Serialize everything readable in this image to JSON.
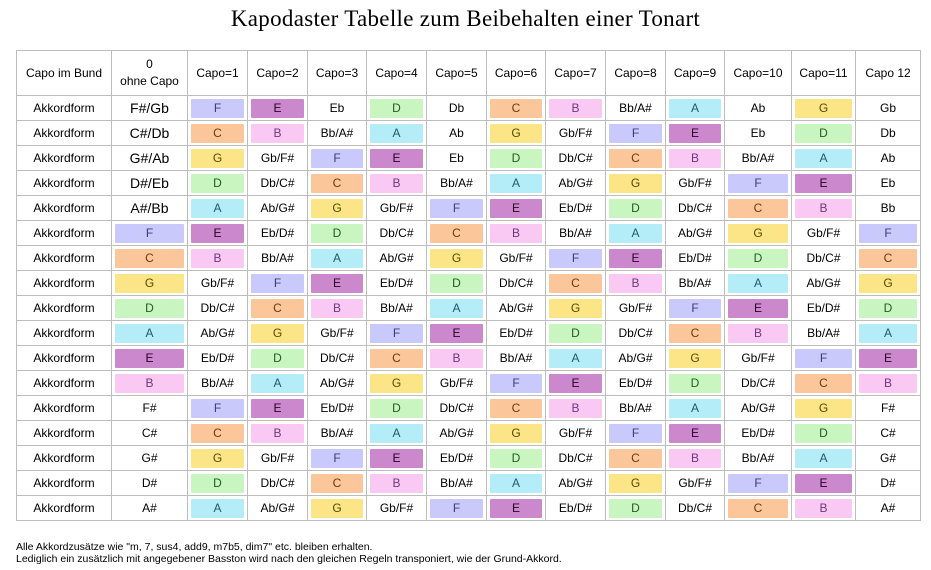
{
  "title": "Kapodaster Tabelle zum Beibehalten einer Tonart",
  "header": [
    "Capo im Bund",
    "0\nohne Capo",
    "Capo=1",
    "Capo=2",
    "Capo=3",
    "Capo=4",
    "Capo=5",
    "Capo=6",
    "Capo=7",
    "Capo=8",
    "Capo=9",
    "Capo=10",
    "Capo=11",
    "Capo 12"
  ],
  "colors": {
    "F": "#c9c9fb",
    "E": "#cc88cc",
    "C": "#fbc79a",
    "B": "#fac9f3",
    "G": "#fbe587",
    "D": "#c9f6c0",
    "A": "#b4ecf8"
  },
  "rows": [
    {
      "label": "Akkordform",
      "cells": [
        "F#/Gb",
        "F",
        "E",
        "Eb",
        "D",
        "Db",
        "C",
        "B",
        "Bb/A#",
        "A",
        "Ab",
        "G",
        "Gb"
      ]
    },
    {
      "label": "Akkordform",
      "cells": [
        "C#/Db",
        "C",
        "B",
        "Bb/A#",
        "A",
        "Ab",
        "G",
        "Gb/F#",
        "F",
        "E",
        "Eb",
        "D",
        "Db"
      ]
    },
    {
      "label": "Akkordform",
      "cells": [
        "G#/Ab",
        "G",
        "Gb/F#",
        "F",
        "E",
        "Eb",
        "D",
        "Db/C#",
        "C",
        "B",
        "Bb/A#",
        "A",
        "Ab"
      ]
    },
    {
      "label": "Akkordform",
      "cells": [
        "D#/Eb",
        "D",
        "Db/C#",
        "C",
        "B",
        "Bb/A#",
        "A",
        "Ab/G#",
        "G",
        "Gb/F#",
        "F",
        "E",
        "Eb"
      ]
    },
    {
      "label": "Akkordform",
      "cells": [
        "A#/Bb",
        "A",
        "Ab/G#",
        "G",
        "Gb/F#",
        "F",
        "E",
        "Eb/D#",
        "D",
        "Db/C#",
        "C",
        "B",
        "Bb"
      ]
    },
    {
      "label": "Akkordform",
      "cells": [
        "F",
        "E",
        "Eb/D#",
        "D",
        "Db/C#",
        "C",
        "B",
        "Bb/A#",
        "A",
        "Ab/G#",
        "G",
        "Gb/F#",
        "F"
      ]
    },
    {
      "label": "Akkordform",
      "cells": [
        "C",
        "B",
        "Bb/A#",
        "A",
        "Ab/G#",
        "G",
        "Gb/F#",
        "F",
        "E",
        "Eb/D#",
        "D",
        "Db/C#",
        "C"
      ]
    },
    {
      "label": "Akkordform",
      "cells": [
        "G",
        "Gb/F#",
        "F",
        "E",
        "Eb/D#",
        "D",
        "Db/C#",
        "C",
        "B",
        "Bb/A#",
        "A",
        "Ab/G#",
        "G"
      ]
    },
    {
      "label": "Akkordform",
      "cells": [
        "D",
        "Db/C#",
        "C",
        "B",
        "Bb/A#",
        "A",
        "Ab/G#",
        "G",
        "Gb/F#",
        "F",
        "E",
        "Eb/D#",
        "D"
      ]
    },
    {
      "label": "Akkordform",
      "cells": [
        "A",
        "Ab/G#",
        "G",
        "Gb/F#",
        "F",
        "E",
        "Eb/D#",
        "D",
        "Db/C#",
        "C",
        "B",
        "Bb/A#",
        "A"
      ]
    },
    {
      "label": "Akkordform",
      "cells": [
        "E",
        "Eb/D#",
        "D",
        "Db/C#",
        "C",
        "B",
        "Bb/A#",
        "A",
        "Ab/G#",
        "G",
        "Gb/F#",
        "F",
        "E"
      ]
    },
    {
      "label": "Akkordform",
      "cells": [
        "B",
        "Bb/A#",
        "A",
        "Ab/G#",
        "G",
        "Gb/F#",
        "F",
        "E",
        "Eb/D#",
        "D",
        "Db/C#",
        "C",
        "B"
      ]
    },
    {
      "label": "Akkordform",
      "cells": [
        "F#",
        "F",
        "E",
        "Eb/D#",
        "D",
        "Db/C#",
        "C",
        "B",
        "Bb/A#",
        "A",
        "Ab/G#",
        "G",
        "F#"
      ]
    },
    {
      "label": "Akkordform",
      "cells": [
        "C#",
        "C",
        "B",
        "Bb/A#",
        "A",
        "Ab/G#",
        "G",
        "Gb/F#",
        "F",
        "E",
        "Eb/D#",
        "D",
        "C#"
      ]
    },
    {
      "label": "Akkordform",
      "cells": [
        "G#",
        "G",
        "Gb/F#",
        "F",
        "E",
        "Eb/D#",
        "D",
        "Db/C#",
        "C",
        "B",
        "Bb/A#",
        "A",
        "G#"
      ]
    },
    {
      "label": "Akkordform",
      "cells": [
        "D#",
        "D",
        "Db/C#",
        "C",
        "B",
        "Bb/A#",
        "A",
        "Ab/G#",
        "G",
        "Gb/F#",
        "F",
        "E",
        "D#"
      ]
    },
    {
      "label": "Akkordform",
      "cells": [
        "A#",
        "A",
        "Ab/G#",
        "G",
        "Gb/F#",
        "F",
        "E",
        "Eb/D#",
        "D",
        "Db/C#",
        "C",
        "B",
        "A#"
      ]
    }
  ],
  "footer": {
    "line1": "Alle Akkordzusätze wie \"m, 7, sus4, add9, m7b5, dim7\" etc. bleiben erhalten.",
    "line2": " Lediglich ein zusätzlich mit angegebener Basston wird nach den gleichen Regeln transponiert, wie der Grund-Akkord."
  }
}
